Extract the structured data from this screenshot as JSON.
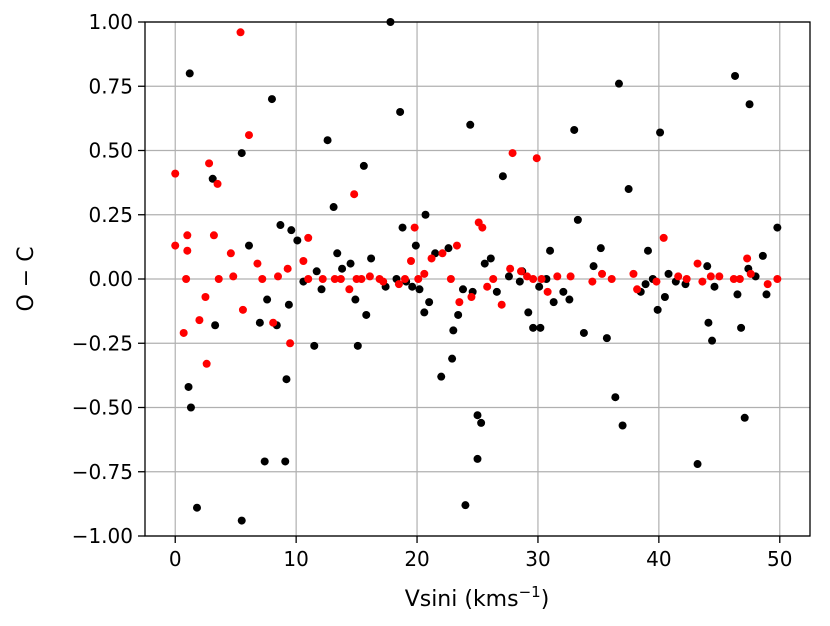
{
  "chart_data": {
    "type": "scatter",
    "xlabel": "Vsini (kms",
    "xlabel_sup": "−1",
    "xlabel_close": ")",
    "ylabel": "O − C",
    "xlim": [
      -2.5,
      52.5
    ],
    "ylim": [
      -1.0,
      1.0
    ],
    "xticks": [
      0,
      10,
      20,
      30,
      40,
      50
    ],
    "xtick_labels": [
      "0",
      "10",
      "20",
      "30",
      "40",
      "50"
    ],
    "yticks": [
      1.0,
      0.75,
      0.5,
      0.25,
      0.0,
      -0.25,
      -0.5,
      -0.75,
      -1.0
    ],
    "ytick_labels": [
      "1.00",
      "0.75",
      "0.50",
      "0.25",
      "0.00",
      "−0.25",
      "−0.50",
      "−0.75",
      "−1.00"
    ],
    "grid": true,
    "series": [
      {
        "color": "#000000",
        "points": [
          [
            1.2,
            0.8
          ],
          [
            1.1,
            -0.42
          ],
          [
            1.3,
            -0.5
          ],
          [
            1.8,
            -0.89
          ],
          [
            3.1,
            0.39
          ],
          [
            3.3,
            -0.18
          ],
          [
            5.5,
            0.49
          ],
          [
            5.5,
            -0.94
          ],
          [
            6.1,
            0.13
          ],
          [
            7.0,
            -0.17
          ],
          [
            7.4,
            -0.71
          ],
          [
            7.6,
            -0.08
          ],
          [
            8.0,
            0.7
          ],
          [
            8.4,
            -0.18
          ],
          [
            8.7,
            0.21
          ],
          [
            9.1,
            -0.71
          ],
          [
            9.2,
            -0.39
          ],
          [
            9.4,
            -0.1
          ],
          [
            9.6,
            0.19
          ],
          [
            10.1,
            0.15
          ],
          [
            10.6,
            -0.01
          ],
          [
            11.5,
            -0.26
          ],
          [
            11.7,
            0.03
          ],
          [
            12.1,
            -0.04
          ],
          [
            12.6,
            0.54
          ],
          [
            13.1,
            0.28
          ],
          [
            13.4,
            0.1
          ],
          [
            13.8,
            0.04
          ],
          [
            14.5,
            0.06
          ],
          [
            14.9,
            -0.08
          ],
          [
            15.1,
            -0.26
          ],
          [
            15.6,
            0.44
          ],
          [
            15.8,
            -0.14
          ],
          [
            16.2,
            0.08
          ],
          [
            17.4,
            -0.03
          ],
          [
            17.8,
            1.0
          ],
          [
            18.3,
            0.0
          ],
          [
            18.6,
            0.65
          ],
          [
            18.8,
            0.2
          ],
          [
            19.1,
            -0.01
          ],
          [
            19.6,
            -0.03
          ],
          [
            19.9,
            0.13
          ],
          [
            20.2,
            -0.04
          ],
          [
            20.6,
            -0.13
          ],
          [
            20.7,
            0.25
          ],
          [
            21.0,
            -0.09
          ],
          [
            21.5,
            0.1
          ],
          [
            22.0,
            -0.38
          ],
          [
            22.6,
            0.12
          ],
          [
            22.9,
            -0.31
          ],
          [
            23.0,
            -0.2
          ],
          [
            23.4,
            -0.14
          ],
          [
            23.8,
            -0.04
          ],
          [
            24.0,
            -0.88
          ],
          [
            24.4,
            0.6
          ],
          [
            24.6,
            -0.05
          ],
          [
            25.0,
            -0.7
          ],
          [
            25.0,
            -0.53
          ],
          [
            25.3,
            -0.56
          ],
          [
            25.6,
            0.06
          ],
          [
            26.1,
            0.08
          ],
          [
            26.6,
            -0.05
          ],
          [
            27.1,
            0.4
          ],
          [
            27.6,
            0.01
          ],
          [
            28.5,
            -0.01
          ],
          [
            28.7,
            0.03
          ],
          [
            29.2,
            -0.13
          ],
          [
            29.6,
            -0.19
          ],
          [
            30.1,
            -0.03
          ],
          [
            30.2,
            -0.19
          ],
          [
            30.7,
            0.0
          ],
          [
            31.0,
            0.11
          ],
          [
            31.3,
            -0.09
          ],
          [
            32.1,
            -0.05
          ],
          [
            32.6,
            -0.08
          ],
          [
            33.0,
            0.58
          ],
          [
            33.3,
            0.23
          ],
          [
            33.8,
            -0.21
          ],
          [
            34.6,
            0.05
          ],
          [
            35.2,
            0.12
          ],
          [
            35.7,
            -0.23
          ],
          [
            36.4,
            -0.46
          ],
          [
            36.7,
            0.76
          ],
          [
            37.0,
            -0.57
          ],
          [
            37.5,
            0.35
          ],
          [
            38.5,
            -0.05
          ],
          [
            38.9,
            -0.02
          ],
          [
            39.1,
            0.11
          ],
          [
            39.5,
            0.0
          ],
          [
            39.9,
            -0.12
          ],
          [
            40.1,
            0.57
          ],
          [
            40.5,
            -0.07
          ],
          [
            40.8,
            0.02
          ],
          [
            41.4,
            -0.01
          ],
          [
            42.2,
            -0.02
          ],
          [
            43.2,
            -0.72
          ],
          [
            44.0,
            0.05
          ],
          [
            44.1,
            -0.17
          ],
          [
            44.4,
            -0.24
          ],
          [
            44.6,
            -0.03
          ],
          [
            46.3,
            0.79
          ],
          [
            46.5,
            -0.06
          ],
          [
            46.8,
            -0.19
          ],
          [
            47.1,
            -0.54
          ],
          [
            47.4,
            0.04
          ],
          [
            47.5,
            0.68
          ],
          [
            48.0,
            0.01
          ],
          [
            48.6,
            0.09
          ],
          [
            48.9,
            -0.06
          ],
          [
            49.8,
            0.2
          ]
        ]
      },
      {
        "color": "#ff0000",
        "points": [
          [
            0.0,
            0.41
          ],
          [
            0.0,
            0.13
          ],
          [
            0.7,
            -0.21
          ],
          [
            0.9,
            0.0
          ],
          [
            1.0,
            0.17
          ],
          [
            1.0,
            0.11
          ],
          [
            2.0,
            -0.16
          ],
          [
            2.5,
            -0.07
          ],
          [
            2.6,
            -0.33
          ],
          [
            2.8,
            0.45
          ],
          [
            3.2,
            0.17
          ],
          [
            3.5,
            0.37
          ],
          [
            3.6,
            0.0
          ],
          [
            4.6,
            0.1
          ],
          [
            4.8,
            0.01
          ],
          [
            5.4,
            0.96
          ],
          [
            5.6,
            -0.12
          ],
          [
            6.1,
            0.56
          ],
          [
            6.8,
            0.06
          ],
          [
            7.2,
            0.0
          ],
          [
            8.1,
            -0.17
          ],
          [
            8.5,
            0.01
          ],
          [
            9.3,
            0.04
          ],
          [
            9.5,
            -0.25
          ],
          [
            10.6,
            0.07
          ],
          [
            11.0,
            0.16
          ],
          [
            11.0,
            0.0
          ],
          [
            12.2,
            0.0
          ],
          [
            13.2,
            0.0
          ],
          [
            13.7,
            0.0
          ],
          [
            14.4,
            -0.04
          ],
          [
            14.8,
            0.33
          ],
          [
            15.0,
            0.0
          ],
          [
            15.4,
            0.0
          ],
          [
            16.1,
            0.01
          ],
          [
            16.9,
            0.0
          ],
          [
            17.2,
            -0.01
          ],
          [
            18.5,
            -0.02
          ],
          [
            19.0,
            0.0
          ],
          [
            19.5,
            0.07
          ],
          [
            19.8,
            0.2
          ],
          [
            20.1,
            0.0
          ],
          [
            20.6,
            0.02
          ],
          [
            21.2,
            0.08
          ],
          [
            22.1,
            0.1
          ],
          [
            22.8,
            0.0
          ],
          [
            23.3,
            0.13
          ],
          [
            23.5,
            -0.09
          ],
          [
            24.5,
            -0.07
          ],
          [
            25.1,
            0.22
          ],
          [
            25.4,
            0.2
          ],
          [
            25.8,
            -0.03
          ],
          [
            26.3,
            0.0
          ],
          [
            27.0,
            -0.1
          ],
          [
            27.7,
            0.04
          ],
          [
            27.9,
            0.49
          ],
          [
            28.6,
            0.03
          ],
          [
            29.1,
            0.01
          ],
          [
            29.6,
            0.0
          ],
          [
            29.9,
            0.47
          ],
          [
            30.3,
            0.0
          ],
          [
            30.8,
            -0.05
          ],
          [
            31.6,
            0.01
          ],
          [
            32.7,
            0.01
          ],
          [
            34.5,
            -0.01
          ],
          [
            35.3,
            0.02
          ],
          [
            36.1,
            0.0
          ],
          [
            37.9,
            0.02
          ],
          [
            38.2,
            -0.04
          ],
          [
            39.8,
            -0.01
          ],
          [
            40.4,
            0.16
          ],
          [
            41.6,
            0.01
          ],
          [
            42.3,
            0.0
          ],
          [
            43.2,
            0.06
          ],
          [
            43.6,
            -0.01
          ],
          [
            44.3,
            0.01
          ],
          [
            45.0,
            0.01
          ],
          [
            46.2,
            0.0
          ],
          [
            46.7,
            0.0
          ],
          [
            47.3,
            0.08
          ],
          [
            47.6,
            0.02
          ],
          [
            49.0,
            -0.02
          ],
          [
            49.8,
            0.0
          ]
        ]
      }
    ]
  }
}
